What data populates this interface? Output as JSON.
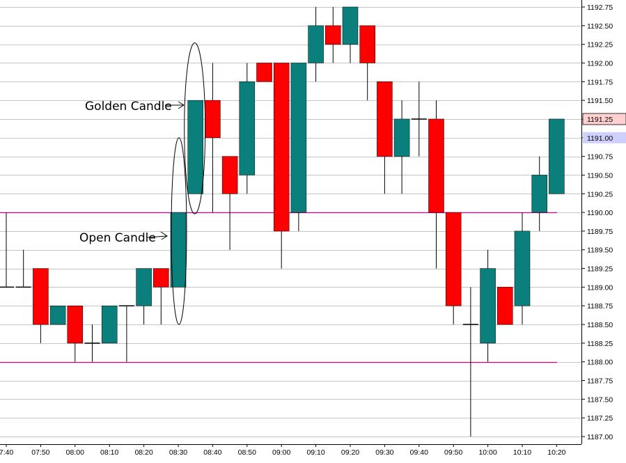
{
  "chart_data": {
    "type": "candlestick",
    "grid": true,
    "colors": {
      "up": "#0a7f7b",
      "down": "#ff0000",
      "level": "#cc0088",
      "price_box_up": "#ffd0d0",
      "price_box_down": "#d0d0ff"
    },
    "y_ticks": [
      "1192.75",
      "1192.50",
      "1192.25",
      "1192.00",
      "1191.75",
      "1191.50",
      "1191.25",
      "1191.00",
      "1190.75",
      "1190.50",
      "1190.25",
      "1190.00",
      "1189.75",
      "1189.50",
      "1189.25",
      "1189.00",
      "1188.75",
      "1188.50",
      "1188.25",
      "1188.00",
      "1187.75",
      "1187.50",
      "1187.25",
      "1187.00"
    ],
    "ylim": [
      1186.95,
      1192.85
    ],
    "x_ticks": [
      "7:40",
      "07:50",
      "08:00",
      "08:10",
      "08:20",
      "08:30",
      "08:40",
      "08:50",
      "09:00",
      "09:10",
      "09:20",
      "09:30",
      "09:40",
      "09:50",
      "10:00",
      "10:10",
      "10:20"
    ],
    "candles": [
      {
        "open": 1189.0,
        "high": 1190.0,
        "low": 1189.0,
        "close": 1189.0
      },
      {
        "open": 1189.0,
        "high": 1189.5,
        "low": 1189.0,
        "close": 1189.0
      },
      {
        "open": 1189.25,
        "high": 1189.25,
        "low": 1188.25,
        "close": 1188.5
      },
      {
        "open": 1188.5,
        "high": 1188.75,
        "low": 1188.5,
        "close": 1188.75
      },
      {
        "open": 1188.75,
        "high": 1188.75,
        "low": 1188.0,
        "close": 1188.25
      },
      {
        "open": 1188.25,
        "high": 1188.5,
        "low": 1188.0,
        "close": 1188.25
      },
      {
        "open": 1188.25,
        "high": 1188.75,
        "low": 1188.25,
        "close": 1188.75
      },
      {
        "open": 1188.75,
        "high": 1188.75,
        "low": 1188.0,
        "close": 1188.75
      },
      {
        "open": 1188.75,
        "high": 1189.25,
        "low": 1188.5,
        "close": 1189.25
      },
      {
        "open": 1189.25,
        "high": 1189.25,
        "low": 1188.5,
        "close": 1189.0
      },
      {
        "open": 1189.0,
        "high": 1190.0,
        "low": 1189.0,
        "close": 1190.0
      },
      {
        "open": 1190.25,
        "high": 1191.5,
        "low": 1190.25,
        "close": 1191.5
      },
      {
        "open": 1191.5,
        "high": 1192.0,
        "low": 1190.0,
        "close": 1191.0
      },
      {
        "open": 1190.75,
        "high": 1190.75,
        "low": 1189.5,
        "close": 1190.25
      },
      {
        "open": 1190.5,
        "high": 1192.0,
        "low": 1190.25,
        "close": 1191.75
      },
      {
        "open": 1192.0,
        "high": 1192.0,
        "low": 1191.75,
        "close": 1191.75
      },
      {
        "open": 1192.0,
        "high": 1192.0,
        "low": 1189.25,
        "close": 1189.75
      },
      {
        "open": 1190.0,
        "high": 1192.0,
        "low": 1189.75,
        "close": 1192.0
      },
      {
        "open": 1192.0,
        "high": 1192.75,
        "low": 1191.75,
        "close": 1192.5
      },
      {
        "open": 1192.5,
        "high": 1192.75,
        "low": 1192.0,
        "close": 1192.25
      },
      {
        "open": 1192.25,
        "high": 1192.75,
        "low": 1192.0,
        "close": 1192.75
      },
      {
        "open": 1192.5,
        "high": 1192.5,
        "low": 1191.5,
        "close": 1192.0
      },
      {
        "open": 1191.75,
        "high": 1191.75,
        "low": 1190.25,
        "close": 1190.75
      },
      {
        "open": 1190.75,
        "high": 1191.5,
        "low": 1190.25,
        "close": 1191.25
      },
      {
        "open": 1191.25,
        "high": 1191.75,
        "low": 1190.75,
        "close": 1191.25
      },
      {
        "open": 1191.25,
        "high": 1191.5,
        "low": 1189.25,
        "close": 1190.0
      },
      {
        "open": 1190.0,
        "high": 1190.0,
        "low": 1188.5,
        "close": 1188.75
      },
      {
        "open": 1188.5,
        "high": 1189.0,
        "low": 1187.0,
        "close": 1188.5
      },
      {
        "open": 1188.25,
        "high": 1189.5,
        "low": 1188.0,
        "close": 1189.25
      },
      {
        "open": 1189.0,
        "high": 1189.0,
        "low": 1188.5,
        "close": 1188.5
      },
      {
        "open": 1188.75,
        "high": 1190.0,
        "low": 1188.5,
        "close": 1189.75
      },
      {
        "open": 1190.0,
        "high": 1190.75,
        "low": 1189.75,
        "close": 1190.5
      },
      {
        "open": 1190.25,
        "high": 1191.25,
        "low": 1190.25,
        "close": 1191.25
      }
    ],
    "levels": [
      1190.0,
      1188.0
    ],
    "price_boxes": [
      {
        "label": "1191.25",
        "price": 1191.25,
        "style": "up"
      },
      {
        "label": "1191.00",
        "price": 1191.0,
        "style": "down"
      }
    ],
    "annotations": [
      {
        "text": "Golden Candle",
        "candle": 11
      },
      {
        "text": "Open Candle",
        "candle": 10
      }
    ]
  }
}
